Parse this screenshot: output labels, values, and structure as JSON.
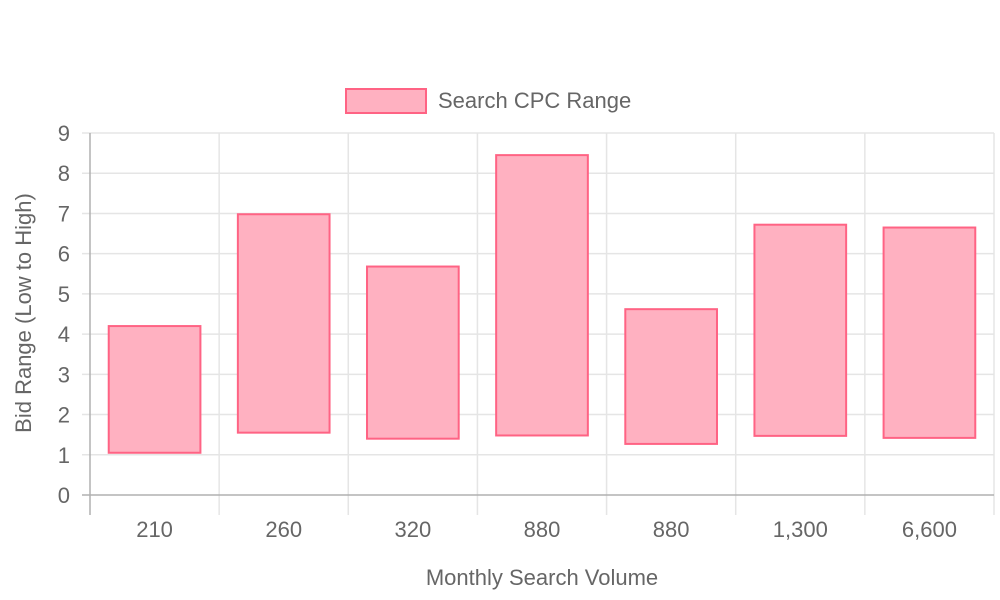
{
  "colors": {
    "bar_fill": "#ffb1c1",
    "bar_stroke": "#ff6384",
    "grid": "#e5e5e5",
    "axis": "#b0b0b0",
    "text": "#666666"
  },
  "chart_data": {
    "type": "bar",
    "subtype": "floating",
    "title": "",
    "legend": {
      "position": "top-center",
      "entries": [
        "Search CPC Range"
      ]
    },
    "xlabel": "Monthly Search Volume",
    "ylabel": "Bid Range (Low to High)",
    "categories": [
      "210",
      "260",
      "320",
      "880",
      "880",
      "1,300",
      "6,600"
    ],
    "series": [
      {
        "name": "Search CPC Range",
        "values": [
          [
            1.05,
            4.2
          ],
          [
            1.55,
            6.98
          ],
          [
            1.4,
            5.68
          ],
          [
            1.48,
            8.45
          ],
          [
            1.27,
            4.62
          ],
          [
            1.47,
            6.72
          ],
          [
            1.42,
            6.65
          ]
        ]
      }
    ],
    "ylim": [
      0,
      9
    ],
    "yticks": [
      0,
      1,
      2,
      3,
      4,
      5,
      6,
      7,
      8,
      9
    ],
    "grid": true
  }
}
